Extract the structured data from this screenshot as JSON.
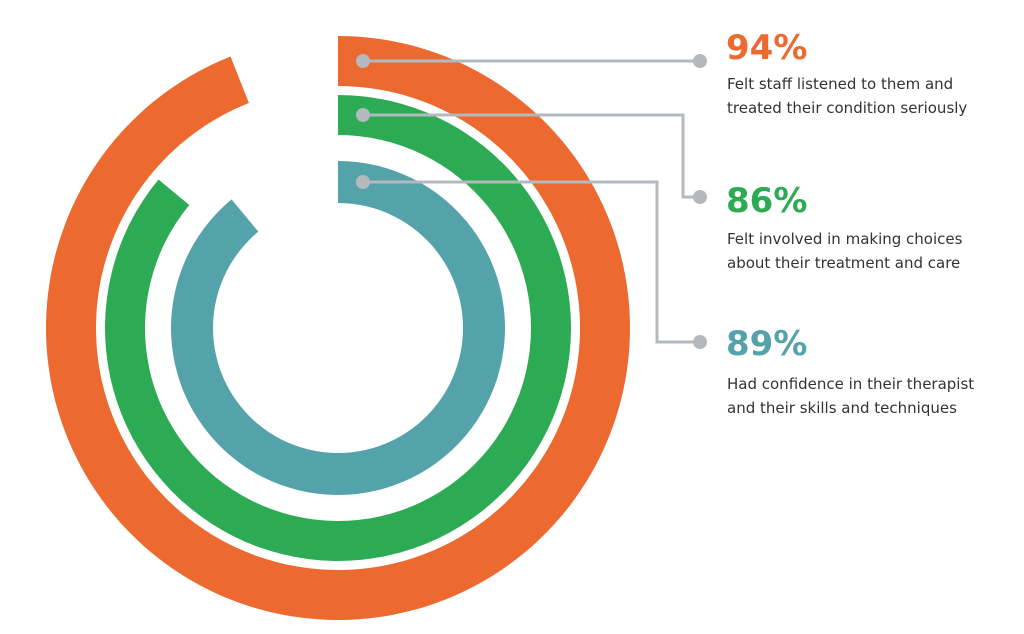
{
  "chart_data": {
    "type": "radial-bar",
    "colors": {
      "connector": "#B4B9BE",
      "background": "#FFFFFF"
    },
    "series": [
      {
        "value": 94,
        "label": "94%",
        "description": [
          "Felt staff listened to them and",
          "treated their condition seriously"
        ],
        "color": "#EC6930"
      },
      {
        "value": 86,
        "label": "86%",
        "description": [
          "Felt involved in making choices",
          "about their treatment and care"
        ],
        "color": "#2CAB54"
      },
      {
        "value": 89,
        "label": "89%",
        "description": [
          "Had confidence in their therapist",
          "and their skills and techniques"
        ],
        "color": "#55A3AA"
      }
    ]
  }
}
